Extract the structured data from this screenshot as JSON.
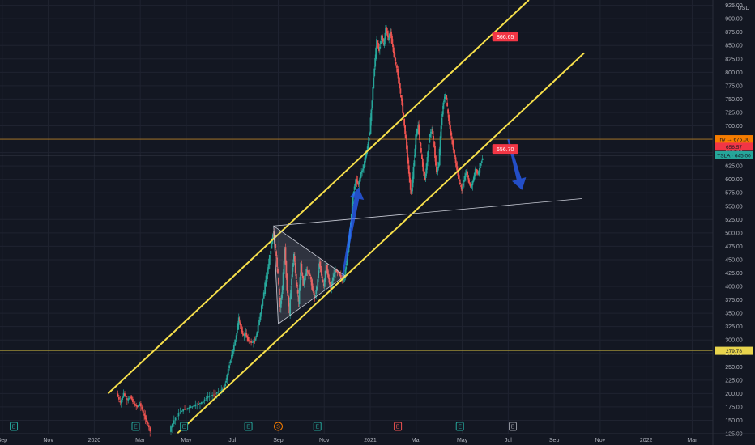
{
  "chart_data": {
    "type": "candlestick",
    "currency": "USD",
    "y_ticks": [
      "925.00",
      "900.00",
      "875.00",
      "850.00",
      "825.00",
      "800.00",
      "775.00",
      "750.00",
      "725.00",
      "700.00",
      "675.00",
      "650.00",
      "625.00",
      "600.00",
      "575.00",
      "550.00",
      "525.00",
      "500.00",
      "475.00",
      "450.00",
      "425.00",
      "400.00",
      "375.00",
      "350.00",
      "325.00",
      "300.00",
      "275.00",
      "250.00",
      "225.00",
      "200.00",
      "175.00",
      "150.00",
      "125.00"
    ],
    "ylim": [
      125,
      935
    ],
    "x_ticks": [
      {
        "label": "Sep",
        "t": -4
      },
      {
        "label": "Nov",
        "t": -2
      },
      {
        "label": "2020",
        "t": 0
      },
      {
        "label": "Mar",
        "t": 2
      },
      {
        "label": "May",
        "t": 4
      },
      {
        "label": "Jul",
        "t": 6
      },
      {
        "label": "Sep",
        "t": 8
      },
      {
        "label": "Nov",
        "t": 10
      },
      {
        "label": "2021",
        "t": 12
      },
      {
        "label": "Mar",
        "t": 14
      },
      {
        "label": "May",
        "t": 16
      },
      {
        "label": "Jul",
        "t": 18
      },
      {
        "label": "Sep",
        "t": 20
      },
      {
        "label": "Nov",
        "t": 22
      },
      {
        "label": "2022",
        "t": 24
      },
      {
        "label": "Mar",
        "t": 26
      }
    ],
    "xlim": [
      -4.1,
      26.9
    ],
    "path_points": [
      [
        1.0,
        200
      ],
      [
        1.15,
        182
      ],
      [
        1.3,
        200
      ],
      [
        1.45,
        188
      ],
      [
        1.6,
        194
      ],
      [
        1.75,
        180
      ],
      [
        1.9,
        175
      ],
      [
        2.0,
        182
      ],
      [
        2.15,
        163
      ],
      [
        2.3,
        148
      ],
      [
        2.45,
        130
      ],
      [
        3.3,
        130
      ],
      [
        3.5,
        150
      ],
      [
        3.7,
        163
      ],
      [
        3.9,
        170
      ],
      [
        4.1,
        173
      ],
      [
        4.3,
        176
      ],
      [
        4.5,
        180
      ],
      [
        4.7,
        183
      ],
      [
        4.9,
        192
      ],
      [
        5.1,
        196
      ],
      [
        5.3,
        200
      ],
      [
        5.5,
        206
      ],
      [
        5.65,
        208
      ],
      [
        5.75,
        225
      ],
      [
        5.9,
        255
      ],
      [
        6.05,
        280
      ],
      [
        6.2,
        310
      ],
      [
        6.3,
        340
      ],
      [
        6.4,
        320
      ],
      [
        6.5,
        308
      ],
      [
        6.6,
        312
      ],
      [
        6.7,
        300
      ],
      [
        6.85,
        295
      ],
      [
        7.0,
        298
      ],
      [
        7.1,
        315
      ],
      [
        7.25,
        350
      ],
      [
        7.4,
        390
      ],
      [
        7.55,
        430
      ],
      [
        7.7,
        470
      ],
      [
        7.8,
        500
      ],
      [
        7.9,
        470
      ],
      [
        8.0,
        420
      ],
      [
        8.1,
        360
      ],
      [
        8.2,
        400
      ],
      [
        8.3,
        470
      ],
      [
        8.4,
        395
      ],
      [
        8.5,
        350
      ],
      [
        8.6,
        420
      ],
      [
        8.7,
        460
      ],
      [
        8.8,
        410
      ],
      [
        8.9,
        370
      ],
      [
        9.0,
        440
      ],
      [
        9.1,
        405
      ],
      [
        9.25,
        430
      ],
      [
        9.4,
        420
      ],
      [
        9.5,
        395
      ],
      [
        9.6,
        380
      ],
      [
        9.7,
        400
      ],
      [
        9.8,
        445
      ],
      [
        9.9,
        420
      ],
      [
        10.0,
        400
      ],
      [
        10.1,
        440
      ],
      [
        10.2,
        415
      ],
      [
        10.3,
        395
      ],
      [
        10.4,
        418
      ],
      [
        10.5,
        430
      ],
      [
        10.65,
        425
      ],
      [
        10.8,
        412
      ],
      [
        10.9,
        418
      ],
      [
        11.0,
        450
      ],
      [
        11.1,
        490
      ],
      [
        11.2,
        540
      ],
      [
        11.3,
        580
      ],
      [
        11.4,
        600
      ],
      [
        11.5,
        590
      ],
      [
        11.6,
        610
      ],
      [
        11.7,
        620
      ],
      [
        11.8,
        640
      ],
      [
        11.9,
        660
      ],
      [
        12.0,
        690
      ],
      [
        12.1,
        750
      ],
      [
        12.2,
        810
      ],
      [
        12.3,
        860
      ],
      [
        12.4,
        840
      ],
      [
        12.5,
        870
      ],
      [
        12.6,
        850
      ],
      [
        12.7,
        885
      ],
      [
        12.8,
        860
      ],
      [
        12.9,
        875
      ],
      [
        13.0,
        845
      ],
      [
        13.1,
        820
      ],
      [
        13.2,
        800
      ],
      [
        13.3,
        770
      ],
      [
        13.4,
        740
      ],
      [
        13.5,
        700
      ],
      [
        13.6,
        660
      ],
      [
        13.7,
        610
      ],
      [
        13.8,
        570
      ],
      [
        13.9,
        620
      ],
      [
        14.0,
        680
      ],
      [
        14.1,
        700
      ],
      [
        14.2,
        660
      ],
      [
        14.3,
        625
      ],
      [
        14.4,
        600
      ],
      [
        14.5,
        640
      ],
      [
        14.6,
        680
      ],
      [
        14.7,
        695
      ],
      [
        14.8,
        660
      ],
      [
        14.9,
        610
      ],
      [
        15.0,
        630
      ],
      [
        15.1,
        700
      ],
      [
        15.2,
        745
      ],
      [
        15.3,
        760
      ],
      [
        15.4,
        720
      ],
      [
        15.5,
        690
      ],
      [
        15.6,
        665
      ],
      [
        15.7,
        640
      ],
      [
        15.8,
        615
      ],
      [
        15.9,
        595
      ],
      [
        16.0,
        580
      ],
      [
        16.1,
        600
      ],
      [
        16.2,
        615
      ],
      [
        16.3,
        595
      ],
      [
        16.4,
        585
      ],
      [
        16.5,
        600
      ],
      [
        16.6,
        620
      ],
      [
        16.7,
        610
      ],
      [
        16.8,
        625
      ],
      [
        16.9,
        640
      ]
    ],
    "channel_upper": [
      [
        0.6,
        200
      ],
      [
        18.9,
        935
      ]
    ],
    "channel_lower": [
      [
        3.6,
        125
      ],
      [
        21.3,
        836
      ]
    ],
    "support_line": [
      [
        7.8,
        513
      ],
      [
        21.2,
        564
      ]
    ],
    "triangle": [
      [
        7.8,
        513
      ],
      [
        8.0,
        330
      ],
      [
        10.9,
        420
      ]
    ],
    "arrows": [
      {
        "from": [
          10.8,
          420
        ],
        "to": [
          11.5,
          585
        ],
        "color": "#2962ff"
      },
      {
        "from": [
          18.0,
          675
        ],
        "to": [
          18.6,
          580
        ],
        "color": "#2962ff"
      }
    ],
    "annotations": [
      {
        "label": "866.65",
        "t": 17.8,
        "y": 866.65,
        "color": "#f23645"
      },
      {
        "label": "656.70",
        "t": 17.8,
        "y": 656.7,
        "color": "#f23645"
      }
    ],
    "horizontal_lines": [
      {
        "y": 675.0,
        "color": "#f5a623"
      },
      {
        "y": 645.0,
        "color": "#787b86"
      },
      {
        "y": 279.78,
        "color": "#b7a53b"
      }
    ],
    "price_labels": [
      {
        "label": "Inv → 675.00",
        "y": 675.0,
        "color": "#f57c00"
      },
      {
        "label": "656.57",
        "y": 661.0,
        "color": "#f23645"
      },
      {
        "label": "TSLA · 645.00",
        "y": 645.0,
        "color": "#26a69a"
      },
      {
        "label": "279.78",
        "y": 279.78,
        "color": "#e8d44d"
      }
    ],
    "event_markers": [
      {
        "label": "E",
        "t": -3.5,
        "type": "earnings"
      },
      {
        "label": "E",
        "t": 1.8,
        "type": "earnings"
      },
      {
        "label": "E",
        "t": 3.9,
        "type": "earnings"
      },
      {
        "label": "E",
        "t": 6.7,
        "type": "earnings"
      },
      {
        "label": "S",
        "t": 8.0,
        "type": "split"
      },
      {
        "label": "E",
        "t": 9.7,
        "type": "earnings"
      },
      {
        "label": "E",
        "t": 13.2,
        "type": "earnings-past"
      },
      {
        "label": "E",
        "t": 15.9,
        "type": "earnings"
      },
      {
        "label": "E",
        "t": 18.2,
        "type": "earnings-future"
      }
    ]
  }
}
